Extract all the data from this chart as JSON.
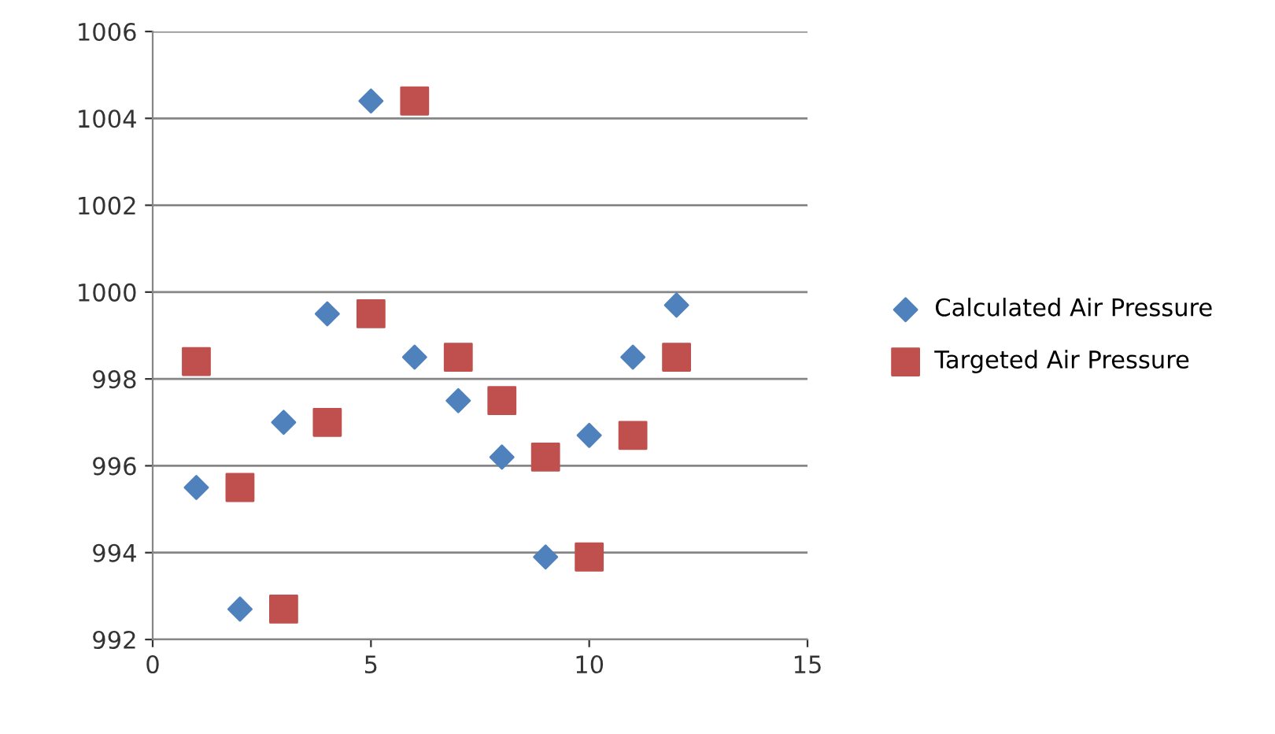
{
  "chart_data": {
    "type": "scatter",
    "xlim": [
      0,
      15
    ],
    "xticks": [
      0,
      5,
      10,
      15
    ],
    "ylim": [
      992,
      1006
    ],
    "yticks": [
      992,
      994,
      996,
      998,
      1000,
      1002,
      1004,
      1006
    ],
    "grid": "y",
    "legend": "right",
    "series": [
      {
        "name": "Calculated Air Pressure",
        "color": "#4f81bd",
        "marker": "diamond",
        "x": [
          1,
          2,
          3,
          4,
          5,
          6,
          7,
          8,
          9,
          10,
          11,
          12
        ],
        "values": [
          995.5,
          992.7,
          997.0,
          999.5,
          1004.4,
          998.5,
          997.5,
          996.2,
          993.9,
          996.7,
          998.5,
          999.7
        ]
      },
      {
        "name": "Targeted Air Pressure",
        "color": "#c0504d",
        "marker": "square",
        "x": [
          1,
          2,
          3,
          4,
          5,
          6,
          7,
          8,
          9,
          10,
          11,
          12
        ],
        "values": [
          998.4,
          995.5,
          992.7,
          997.0,
          999.5,
          1004.4,
          998.5,
          997.5,
          996.2,
          993.9,
          996.7,
          998.5
        ]
      }
    ]
  }
}
